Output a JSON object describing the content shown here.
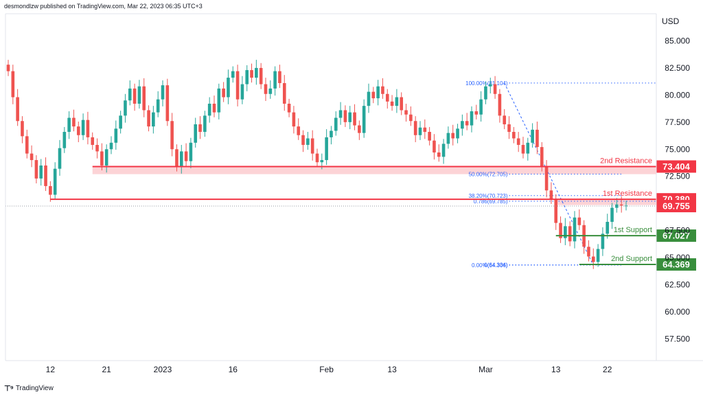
{
  "header": {
    "attribution": "desmondlzw published on TradingView.com, Mar 22, 2023 06:35 UTC+3"
  },
  "footer": {
    "brand": "TradingView",
    "logo_icon": "tradingview-logo-icon"
  },
  "colors": {
    "up": "#26a69a",
    "down": "#ef5350",
    "resistance": "#f23645",
    "support": "#388e3c",
    "fib": "#2962ff",
    "axis_text": "#131722",
    "grid": "#e0e3eb"
  },
  "chart_data": {
    "type": "candlestick",
    "currency": "USD",
    "ylim": [
      55.5,
      87.5
    ],
    "y_ticks": [
      "85.000",
      "82.500",
      "80.000",
      "77.500",
      "75.000",
      "72.500",
      "67.500",
      "65.000",
      "62.500",
      "60.000",
      "57.500"
    ],
    "x_ticks": [
      {
        "label": "12",
        "bar": 9
      },
      {
        "label": "21",
        "bar": 21
      },
      {
        "label": "2023",
        "bar": 33
      },
      {
        "label": "16",
        "bar": 48
      },
      {
        "label": "Feb",
        "bar": 68
      },
      {
        "label": "13",
        "bar": 82
      },
      {
        "label": "Mar",
        "bar": 102
      },
      {
        "label": "13",
        "bar": 117
      },
      {
        "label": "22",
        "bar": 128
      }
    ],
    "closes": [
      82.2,
      79.8,
      77.6,
      76.2,
      74.6,
      74.0,
      72.3,
      73.5,
      71.6,
      70.8,
      73.2,
      75.1,
      76.6,
      77.9,
      77.1,
      76.3,
      77.7,
      76.1,
      75.4,
      74.8,
      73.5,
      75.0,
      75.6,
      76.9,
      78.1,
      79.5,
      80.6,
      79.2,
      80.8,
      78.6,
      77.1,
      78.4,
      79.6,
      80.9,
      77.6,
      75.0,
      73.4,
      74.8,
      73.9,
      75.6,
      77.3,
      76.6,
      78.1,
      79.2,
      78.4,
      80.6,
      79.8,
      81.6,
      82.2,
      79.6,
      81.0,
      82.3,
      81.6,
      82.5,
      81.0,
      80.1,
      80.6,
      82.2,
      81.1,
      79.2,
      78.4,
      77.1,
      76.3,
      75.4,
      76.0,
      74.6,
      73.8,
      74.0,
      76.1,
      76.7,
      77.9,
      78.6,
      77.5,
      78.4,
      77.2,
      76.5,
      79.0,
      80.3,
      79.7,
      80.8,
      80.1,
      79.4,
      79.0,
      79.8,
      78.6,
      78.2,
      77.6,
      76.3,
      77.0,
      76.6,
      75.8,
      74.7,
      74.3,
      75.5,
      76.5,
      76.0,
      76.9,
      77.6,
      77.2,
      78.5,
      78.2,
      79.6,
      80.8,
      81.0,
      80.1,
      78.1,
      77.3,
      76.6,
      76.0,
      75.4,
      74.6,
      75.6,
      76.8,
      75.2,
      73.4,
      71.2,
      70.4,
      68.2,
      66.8,
      67.9,
      66.5,
      68.7,
      68.0,
      66.0,
      65.1,
      64.6,
      65.8,
      67.2,
      68.3,
      69.6,
      69.9,
      69.8,
      69.8
    ],
    "levels": [
      {
        "name": "2nd Resistance",
        "value": "73.404",
        "y": 73.404,
        "zone": [
          72.7,
          73.404
        ]
      },
      {
        "name": "1st Resistance",
        "value": "70.380",
        "y": 70.38,
        "zone": [
          69.85,
          70.38
        ]
      },
      {
        "name": "1st Support",
        "value": "67.027",
        "y": 67.027
      },
      {
        "name": "2nd Support",
        "value": "64.369",
        "y": 64.369
      }
    ],
    "current_price": {
      "value": "69.755",
      "y": 69.755
    },
    "fib_labels": [
      {
        "text": "100.00%(81.104)",
        "y": 81.104
      },
      {
        "text": "50.00%(72.705)",
        "y": 72.705
      },
      {
        "text": "38.20%(70.723)",
        "y": 70.723
      },
      {
        "text": "0.786(69.785)",
        "y": 70.2
      },
      {
        "text": "0(64.334)",
        "y": 64.334
      },
      {
        "text": "0.00%(64.306)",
        "y": 64.306
      }
    ]
  }
}
